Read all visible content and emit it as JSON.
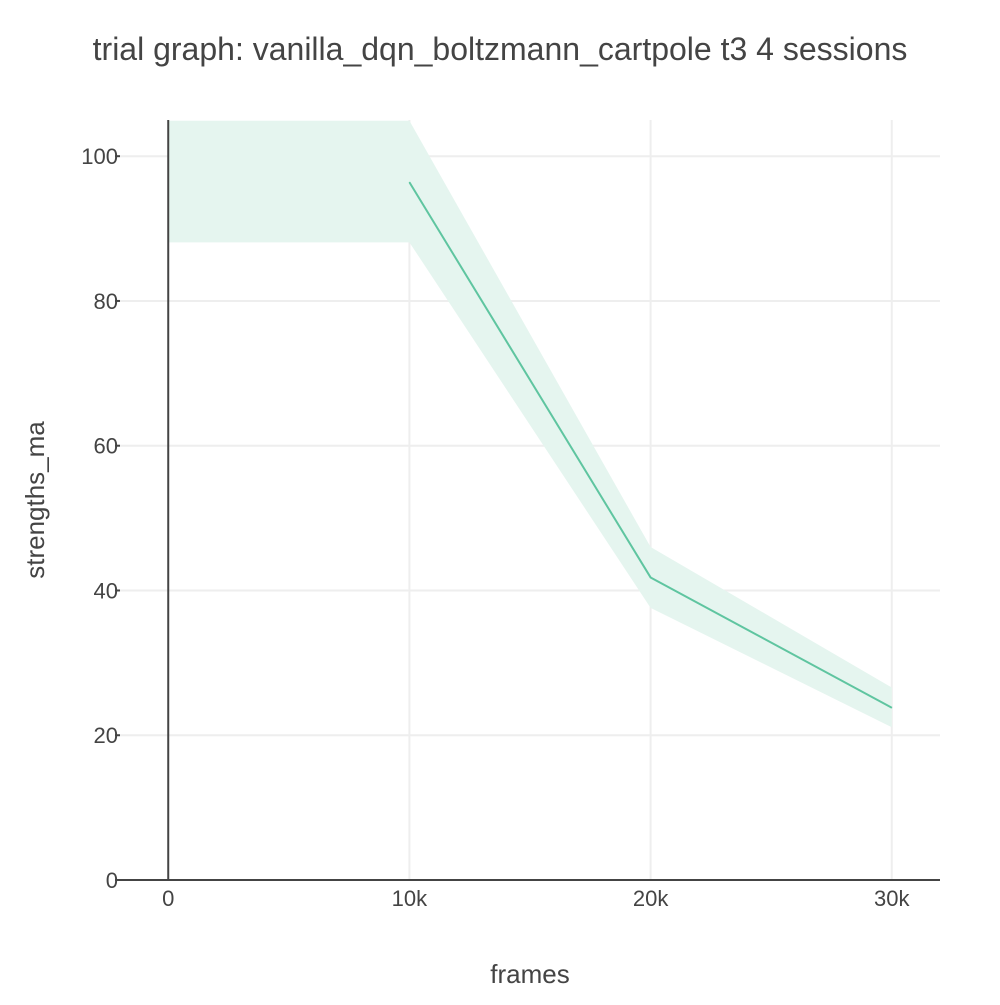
{
  "chart_data": {
    "type": "line",
    "title": "trial graph: vanilla_dqn_boltzmann_cartpole t3 4 sessions",
    "xlabel": "frames",
    "ylabel": "strengths_ma",
    "xlim": [
      -2000,
      32000
    ],
    "ylim": [
      0,
      105
    ],
    "x_ticks": [
      0,
      10000,
      20000,
      30000
    ],
    "x_tick_labels": [
      "0",
      "10k",
      "20k",
      "30k"
    ],
    "y_ticks": [
      0,
      20,
      40,
      60,
      80,
      100
    ],
    "y_tick_labels": [
      "0",
      "20",
      "40",
      "60",
      "80",
      "100"
    ],
    "grid": true,
    "legend": "none",
    "series": [
      {
        "color": "#5fc5a0",
        "band_color": "#e5f5ef",
        "x": [
          10000,
          20000,
          30000
        ],
        "y": [
          96.4,
          41.8,
          23.8
        ]
      }
    ],
    "band": {
      "x": [
        0,
        10000,
        20000,
        30000
      ],
      "upper": [
        104.9,
        104.9,
        46.0,
        26.6
      ],
      "lower": [
        88.1,
        88.1,
        37.6,
        21.1
      ]
    }
  }
}
